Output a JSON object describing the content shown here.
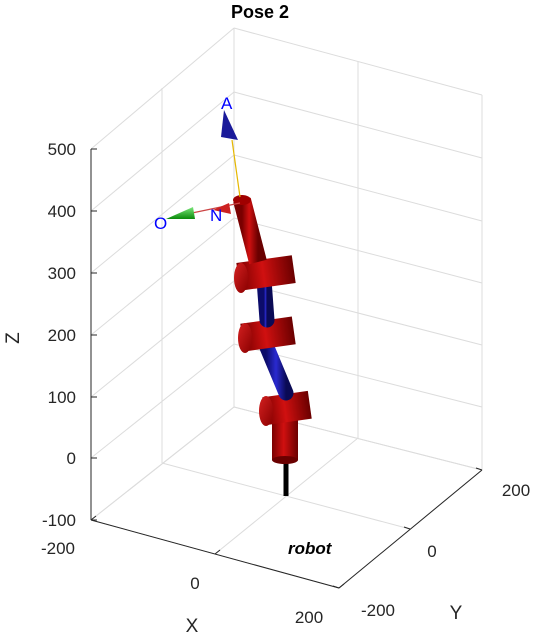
{
  "chart_data": {
    "type": "3d-robot-plot",
    "title": "Pose 2",
    "xlabel": "X",
    "ylabel": "Y",
    "zlabel": "Z",
    "xlim": [
      -200,
      200
    ],
    "ylim": [
      -200,
      200
    ],
    "zlim": [
      -100,
      500
    ],
    "x_ticks": [
      "-200",
      "0",
      "200"
    ],
    "y_ticks": [
      "-200",
      "0",
      "200"
    ],
    "z_ticks": [
      "-100",
      "0",
      "100",
      "200",
      "300",
      "400",
      "500"
    ],
    "grid": true,
    "robot_name": "robot",
    "frame_labels": [
      "A",
      "O",
      "N"
    ],
    "colors": {
      "link": "#c00000",
      "joint_axis": "#1f1fa8",
      "base": "#000000",
      "approach_arrow": "#1a1a9a",
      "orient_arrow": "#22bb22",
      "normal_arrow": "#cc2222",
      "label": "#0000ff"
    }
  }
}
